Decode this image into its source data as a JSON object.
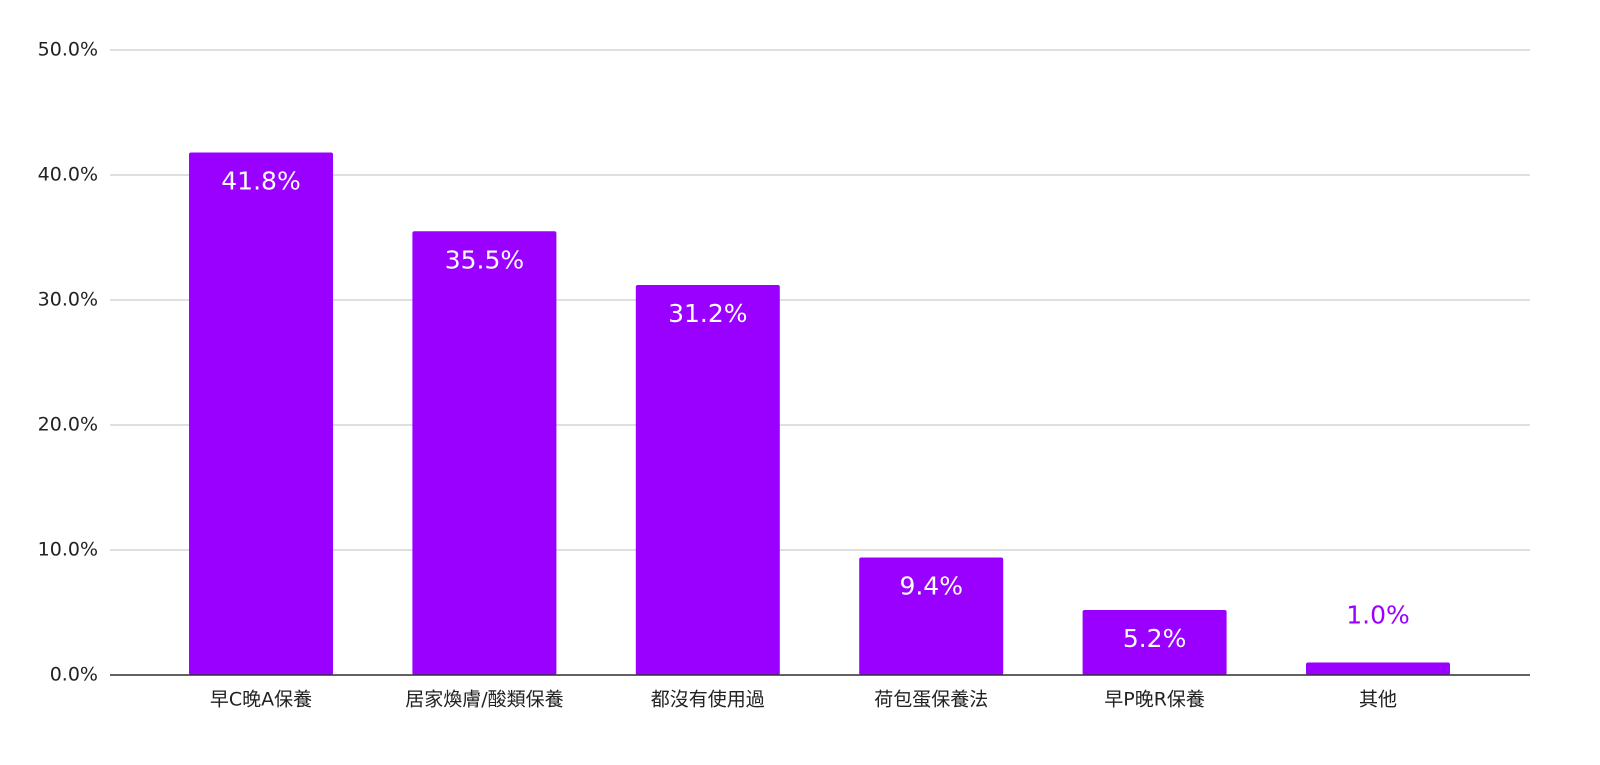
{
  "chart_data": {
    "type": "bar",
    "categories": [
      "早C晚A保養",
      "居家煥膚/酸類保養",
      "都沒有使用過",
      "荷包蛋保養法",
      "早P晚R保養",
      "其他"
    ],
    "values": [
      41.8,
      35.5,
      31.2,
      9.4,
      5.2,
      1.0
    ],
    "value_labels": [
      "41.8%",
      "35.5%",
      "31.2%",
      "9.4%",
      "5.2%",
      "1.0%"
    ],
    "color": "#9900ff",
    "ylim": [
      0,
      50
    ],
    "yticks": [
      {
        "value": 0,
        "label": "0.0%"
      },
      {
        "value": 10,
        "label": "10.0%"
      },
      {
        "value": 20,
        "label": "20.0%"
      },
      {
        "value": 30,
        "label": "30.0%"
      },
      {
        "value": 40,
        "label": "40.0%"
      },
      {
        "value": 50,
        "label": "50.0%"
      }
    ],
    "grid": true
  }
}
